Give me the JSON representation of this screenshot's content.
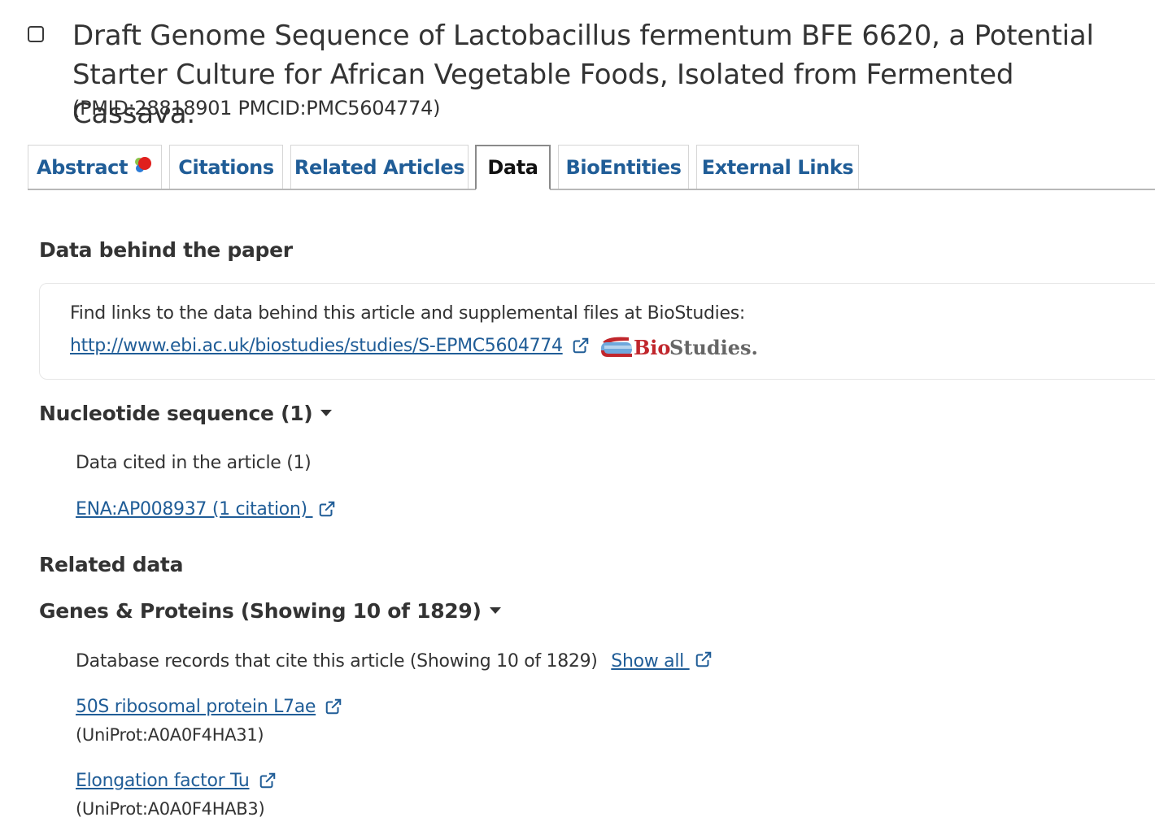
{
  "article": {
    "title": "Draft Genome Sequence of Lactobacillus fermentum BFE 6620, a Potential Starter Culture for African Vegetable Foods, Isolated from Fermented Cassava.",
    "ids": "(PMID:28818901 PMCID:PMC5604774)"
  },
  "tabs": [
    {
      "label": "Abstract"
    },
    {
      "label": "Citations"
    },
    {
      "label": "Related Articles"
    },
    {
      "label": "Data"
    },
    {
      "label": "BioEntities"
    },
    {
      "label": "External Links"
    }
  ],
  "active_tab": "Data",
  "data_behind": {
    "heading": "Data behind the paper",
    "text": "Find links to the data behind this article and supplemental files at BioStudies:",
    "url": "http://www.ebi.ac.uk/biostudies/studies/S-EPMC5604774",
    "logo_text_bio": "Bio",
    "logo_text_studies": "Studies."
  },
  "nucleotide": {
    "heading": "Nucleotide sequence (1)",
    "subheading": "Data cited in the article (1)",
    "link": "ENA:AP008937 (1 citation) "
  },
  "related": {
    "heading": "Related data",
    "genes_heading": "Genes & Proteins (Showing 10 of 1829)",
    "db_text": "Database records that cite this article (Showing 10 of 1829)",
    "show_all": "Show all ",
    "records": [
      {
        "name": "50S ribosomal protein L7ae",
        "id": "(UniProt:A0A0F4HA31)"
      },
      {
        "name": "Elongation factor Tu",
        "id": "(UniProt:A0A0F4HAB3)"
      }
    ]
  },
  "colors": {
    "link": "#205d97",
    "text": "#333333",
    "logo_red": "#c0262c",
    "logo_blue": "#6fa8dc"
  },
  "icons": [
    "checkbox-icon",
    "annotation-dots-icon",
    "external-link-icon",
    "caret-down-icon",
    "biostudies-logo"
  ]
}
